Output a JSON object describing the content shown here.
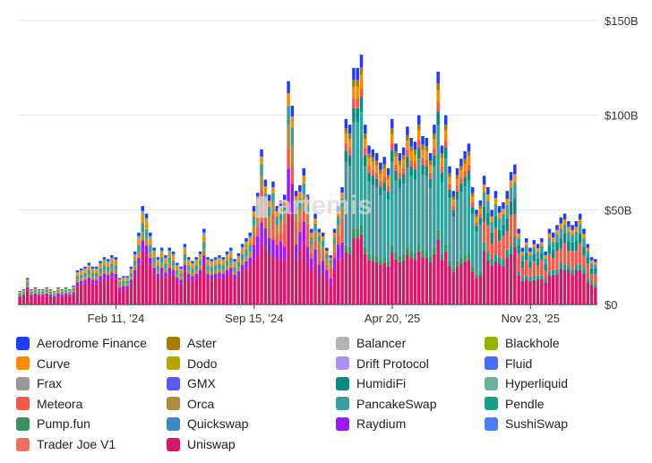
{
  "chart_data": {
    "type": "bar",
    "stacked": true,
    "title": "",
    "xlabel": "",
    "ylabel": "",
    "ylim": [
      0,
      150
    ],
    "y_unit": "B",
    "y_ticks": [
      {
        "value": 0,
        "label": "$0"
      },
      {
        "value": 50,
        "label": "$50B"
      },
      {
        "value": 100,
        "label": "$100B"
      },
      {
        "value": 150,
        "label": "$150B"
      }
    ],
    "x_ticks": [
      {
        "date": "2024-02-11",
        "label": "Feb 11, '24"
      },
      {
        "date": "2024-09-15",
        "label": "Sep 15, '24"
      },
      {
        "date": "2025-04-20",
        "label": "Apr 20, '25"
      },
      {
        "date": "2025-11-23",
        "label": "Nov 23, '25"
      }
    ],
    "x_start": "2023-09-10",
    "x_end": "2026-03-08",
    "interval": "weekly",
    "grid": true,
    "legend_position": "bottom",
    "weekly_totals": [
      7,
      8,
      14,
      8,
      9,
      8,
      8,
      9,
      8,
      7,
      9,
      8,
      9,
      8,
      10,
      18,
      19,
      20,
      22,
      20,
      20,
      23,
      25,
      24,
      26,
      25,
      14,
      15,
      15,
      20,
      28,
      38,
      52,
      48,
      38,
      30,
      25,
      30,
      26,
      30,
      28,
      22,
      20,
      32,
      25,
      23,
      25,
      28,
      40,
      25,
      24,
      25,
      26,
      25,
      28,
      30,
      24,
      27,
      32,
      35,
      38,
      52,
      59,
      82,
      66,
      58,
      65,
      52,
      55,
      58,
      118,
      105,
      60,
      63,
      72,
      58,
      40,
      48,
      40,
      38,
      30,
      26,
      40,
      52,
      62,
      98,
      95,
      125,
      125,
      132,
      95,
      84,
      82,
      80,
      75,
      78,
      72,
      98,
      85,
      80,
      83,
      94,
      88,
      86,
      100,
      89,
      88,
      80,
      95,
      123,
      84,
      100,
      73,
      60,
      72,
      77,
      81,
      85,
      62,
      50,
      55,
      68,
      62,
      50,
      60,
      52,
      54,
      60,
      70,
      74,
      40,
      30,
      35,
      30,
      34,
      32,
      35,
      28,
      40,
      38,
      42,
      46,
      48,
      44,
      42,
      44,
      48,
      40,
      32,
      25,
      24
    ],
    "series": [
      {
        "name": "Aerodrome Finance",
        "color": "#1f3df7"
      },
      {
        "name": "Aster",
        "color": "#a37c00"
      },
      {
        "name": "Balancer",
        "color": "#b3b3b3"
      },
      {
        "name": "Blackhole",
        "color": "#92b300"
      },
      {
        "name": "Curve",
        "color": "#ff8c00"
      },
      {
        "name": "Dodo",
        "color": "#b3a600"
      },
      {
        "name": "Drift Protocol",
        "color": "#b08ef2"
      },
      {
        "name": "Fluid",
        "color": "#4770f0"
      },
      {
        "name": "Frax",
        "color": "#999999"
      },
      {
        "name": "GMX",
        "color": "#5a58f2"
      },
      {
        "name": "HumidiFi",
        "color": "#078a80"
      },
      {
        "name": "Hyperliquid",
        "color": "#6db0a0"
      },
      {
        "name": "Meteora",
        "color": "#f45a4a"
      },
      {
        "name": "Orca",
        "color": "#b08c40"
      },
      {
        "name": "PancakeSwap",
        "color": "#3a9e9e"
      },
      {
        "name": "Pendle",
        "color": "#17a085"
      },
      {
        "name": "Pump.fun",
        "color": "#3d9060"
      },
      {
        "name": "Quickswap",
        "color": "#3c8ac4"
      },
      {
        "name": "Raydium",
        "color": "#9a1df0"
      },
      {
        "name": "SushiSwap",
        "color": "#4a80f0"
      },
      {
        "name": "Trader Joe V1",
        "color": "#f07060"
      },
      {
        "name": "Uniswap",
        "color": "#d6186a"
      }
    ]
  }
}
